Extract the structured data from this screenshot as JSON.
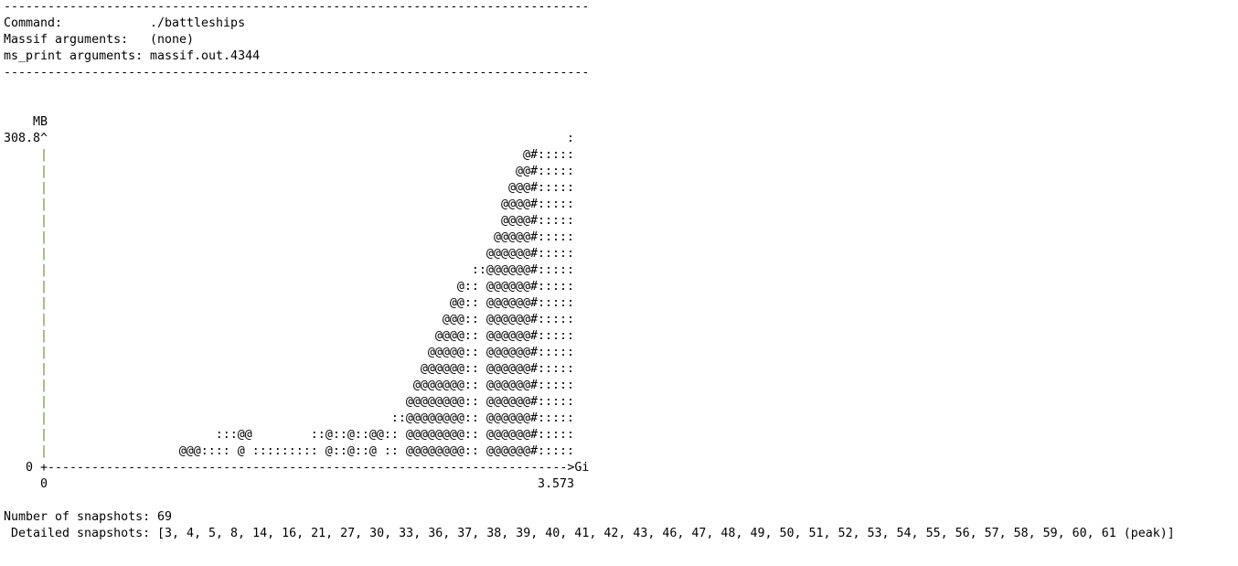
{
  "header": {
    "rule": "--------------------------------------------------------------------------------",
    "fields": [
      {
        "label": "Command:",
        "value": "./battleships"
      },
      {
        "label": "Massif arguments:",
        "value": "(none)"
      },
      {
        "label": "ms_print arguments:",
        "value": "massif.out.4344"
      }
    ]
  },
  "graph": {
    "unit": "MB",
    "y_max": "308.8^",
    "axis_char": "|",
    "rows": [
      ":",
      "@#:::::",
      "@@#:::::",
      "@@@#:::::",
      "@@@@#:::::",
      "@@@@#:::::",
      "@@@@@#:::::",
      "@@@@@@#:::::",
      "::@@@@@@#:::::",
      "@:: @@@@@@#:::::",
      "@@:: @@@@@@#:::::",
      "@@@:: @@@@@@#:::::",
      "@@@@:: @@@@@@#:::::",
      "@@@@@:: @@@@@@#:::::",
      "@@@@@@:: @@@@@@#:::::",
      "@@@@@@@:: @@@@@@#:::::",
      "@@@@@@@@:: @@@@@@#:::::",
      "::@@@@@@@@:: @@@@@@#:::::",
      ":::@@        ::@::@::@@:: @@@@@@@@:: @@@@@@#:::::",
      "@@@:::: @ ::::::::: @::@::@ :: @@@@@@@@:: @@@@@@#:::::"
    ],
    "y_min": "0",
    "x_axis": "+-----------------------------------------------------------------------&gt;Gi",
    "x_min": "0",
    "x_max": "3.573"
  },
  "summary": {
    "snapshots_label": "Number of snapshots:",
    "snapshots": "69",
    "detailed_label": "Detailed snapshots:",
    "detailed": "[3, 4, 5, 8, 14, 16, 21, 27, 30, 33, 36, 37, 38, 39, 40, 41, 42, 43, 46, 47, 48, 49, 50, 51, 52, 53, 54, 55, 56, 57, 58, 59, 60, 61 (peak)]"
  }
}
